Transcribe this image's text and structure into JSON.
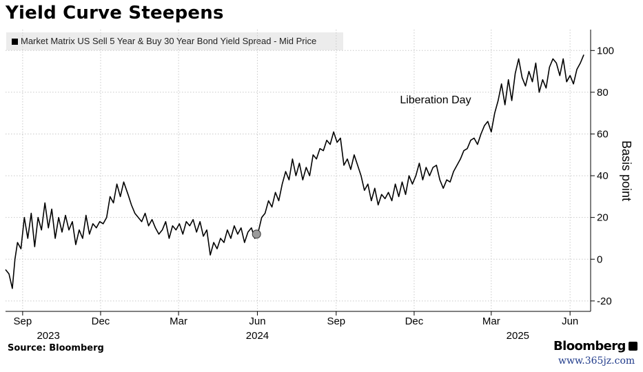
{
  "chart_data": {
    "type": "line",
    "title": "Yield Curve Steepens",
    "series_name": "Market Matrix US Sell 5 Year & Buy 30 Year Bond Yield Spread - Mid Price",
    "ylabel": "Basis point",
    "ylim": [
      -25,
      110
    ],
    "yticks": [
      -20,
      0,
      20,
      40,
      60,
      80,
      100
    ],
    "xlim": [
      "2023-08-12",
      "2025-06-25"
    ],
    "x_month_ticks": [
      {
        "date": "2023-09-01",
        "label": "Sep"
      },
      {
        "date": "2023-12-01",
        "label": "Dec"
      },
      {
        "date": "2024-03-01",
        "label": "Mar"
      },
      {
        "date": "2024-06-01",
        "label": "Jun"
      },
      {
        "date": "2024-09-01",
        "label": "Sep"
      },
      {
        "date": "2024-12-01",
        "label": "Dec"
      },
      {
        "date": "2025-03-01",
        "label": "Mar"
      },
      {
        "date": "2025-06-01",
        "label": "Jun"
      }
    ],
    "x_year_labels": [
      {
        "date": "2023-10-01",
        "label": "2023"
      },
      {
        "date": "2024-06-01",
        "label": "2024"
      },
      {
        "date": "2025-04-01",
        "label": "2025"
      }
    ],
    "grid": true,
    "annotation": {
      "text": "Liberation Day"
    },
    "marker": {
      "date": "2024-05-31",
      "value": 12
    },
    "series": [
      {
        "points": [
          [
            "2023-08-12",
            -5
          ],
          [
            "2023-08-16",
            -7
          ],
          [
            "2023-08-20",
            -14
          ],
          [
            "2023-08-23",
            0
          ],
          [
            "2023-08-26",
            8
          ],
          [
            "2023-08-30",
            5
          ],
          [
            "2023-09-03",
            20
          ],
          [
            "2023-09-07",
            10
          ],
          [
            "2023-09-11",
            22
          ],
          [
            "2023-09-15",
            6
          ],
          [
            "2023-09-19",
            20
          ],
          [
            "2023-09-23",
            14
          ],
          [
            "2023-09-27",
            27
          ],
          [
            "2023-10-01",
            15
          ],
          [
            "2023-10-05",
            24
          ],
          [
            "2023-10-09",
            10
          ],
          [
            "2023-10-13",
            20
          ],
          [
            "2023-10-17",
            13
          ],
          [
            "2023-10-21",
            21
          ],
          [
            "2023-10-25",
            14
          ],
          [
            "2023-10-29",
            18
          ],
          [
            "2023-11-02",
            7
          ],
          [
            "2023-11-06",
            14
          ],
          [
            "2023-11-10",
            10
          ],
          [
            "2023-11-14",
            21
          ],
          [
            "2023-11-18",
            12
          ],
          [
            "2023-11-22",
            17
          ],
          [
            "2023-11-26",
            15
          ],
          [
            "2023-11-30",
            18
          ],
          [
            "2023-12-04",
            17
          ],
          [
            "2023-12-08",
            20
          ],
          [
            "2023-12-12",
            30
          ],
          [
            "2023-12-16",
            27
          ],
          [
            "2023-12-20",
            36
          ],
          [
            "2023-12-24",
            30
          ],
          [
            "2023-12-28",
            37
          ],
          [
            "2024-01-02",
            31
          ],
          [
            "2024-01-06",
            26
          ],
          [
            "2024-01-10",
            22
          ],
          [
            "2024-01-14",
            20
          ],
          [
            "2024-01-18",
            18
          ],
          [
            "2024-01-22",
            22
          ],
          [
            "2024-01-26",
            16
          ],
          [
            "2024-01-30",
            19
          ],
          [
            "2024-02-03",
            15
          ],
          [
            "2024-02-07",
            12
          ],
          [
            "2024-02-11",
            14
          ],
          [
            "2024-02-15",
            18
          ],
          [
            "2024-02-19",
            10
          ],
          [
            "2024-02-23",
            16
          ],
          [
            "2024-02-27",
            14
          ],
          [
            "2024-03-02",
            17
          ],
          [
            "2024-03-06",
            12
          ],
          [
            "2024-03-10",
            18
          ],
          [
            "2024-03-14",
            16
          ],
          [
            "2024-03-18",
            19
          ],
          [
            "2024-03-22",
            13
          ],
          [
            "2024-03-26",
            18
          ],
          [
            "2024-03-30",
            11
          ],
          [
            "2024-04-03",
            14
          ],
          [
            "2024-04-07",
            2
          ],
          [
            "2024-04-11",
            8
          ],
          [
            "2024-04-15",
            5
          ],
          [
            "2024-04-19",
            10
          ],
          [
            "2024-04-23",
            8
          ],
          [
            "2024-04-27",
            14
          ],
          [
            "2024-05-01",
            10
          ],
          [
            "2024-05-05",
            16
          ],
          [
            "2024-05-09",
            12
          ],
          [
            "2024-05-13",
            15
          ],
          [
            "2024-05-17",
            8
          ],
          [
            "2024-05-21",
            13
          ],
          [
            "2024-05-25",
            15
          ],
          [
            "2024-05-29",
            10
          ],
          [
            "2024-06-02",
            13
          ],
          [
            "2024-06-06",
            20
          ],
          [
            "2024-06-10",
            22
          ],
          [
            "2024-06-14",
            28
          ],
          [
            "2024-06-18",
            25
          ],
          [
            "2024-06-22",
            32
          ],
          [
            "2024-06-26",
            28
          ],
          [
            "2024-06-30",
            36
          ],
          [
            "2024-07-04",
            42
          ],
          [
            "2024-07-08",
            38
          ],
          [
            "2024-07-12",
            48
          ],
          [
            "2024-07-16",
            40
          ],
          [
            "2024-07-20",
            46
          ],
          [
            "2024-07-24",
            38
          ],
          [
            "2024-07-28",
            44
          ],
          [
            "2024-08-01",
            40
          ],
          [
            "2024-08-05",
            50
          ],
          [
            "2024-08-09",
            48
          ],
          [
            "2024-08-13",
            53
          ],
          [
            "2024-08-17",
            52
          ],
          [
            "2024-08-21",
            57
          ],
          [
            "2024-08-25",
            55
          ],
          [
            "2024-08-29",
            61
          ],
          [
            "2024-09-02",
            56
          ],
          [
            "2024-09-06",
            58
          ],
          [
            "2024-09-10",
            45
          ],
          [
            "2024-09-14",
            48
          ],
          [
            "2024-09-18",
            43
          ],
          [
            "2024-09-22",
            50
          ],
          [
            "2024-09-26",
            45
          ],
          [
            "2024-09-30",
            40
          ],
          [
            "2024-10-04",
            33
          ],
          [
            "2024-10-08",
            36
          ],
          [
            "2024-10-12",
            28
          ],
          [
            "2024-10-16",
            34
          ],
          [
            "2024-10-20",
            26
          ],
          [
            "2024-10-24",
            31
          ],
          [
            "2024-10-28",
            29
          ],
          [
            "2024-11-01",
            32
          ],
          [
            "2024-11-05",
            28
          ],
          [
            "2024-11-09",
            36
          ],
          [
            "2024-11-13",
            30
          ],
          [
            "2024-11-17",
            37
          ],
          [
            "2024-11-21",
            31
          ],
          [
            "2024-11-25",
            40
          ],
          [
            "2024-11-29",
            36
          ],
          [
            "2024-12-03",
            40
          ],
          [
            "2024-12-07",
            46
          ],
          [
            "2024-12-11",
            38
          ],
          [
            "2024-12-15",
            44
          ],
          [
            "2024-12-19",
            40
          ],
          [
            "2024-12-23",
            44
          ],
          [
            "2024-12-27",
            45
          ],
          [
            "2024-12-31",
            38
          ],
          [
            "2025-01-04",
            34
          ],
          [
            "2025-01-08",
            38
          ],
          [
            "2025-01-12",
            37
          ],
          [
            "2025-01-16",
            42
          ],
          [
            "2025-01-20",
            45
          ],
          [
            "2025-01-24",
            48
          ],
          [
            "2025-01-28",
            52
          ],
          [
            "2025-02-01",
            53
          ],
          [
            "2025-02-05",
            57
          ],
          [
            "2025-02-09",
            58
          ],
          [
            "2025-02-13",
            55
          ],
          [
            "2025-02-17",
            60
          ],
          [
            "2025-02-21",
            64
          ],
          [
            "2025-02-25",
            66
          ],
          [
            "2025-03-01",
            61
          ],
          [
            "2025-03-05",
            70
          ],
          [
            "2025-03-09",
            76
          ],
          [
            "2025-03-13",
            84
          ],
          [
            "2025-03-17",
            74
          ],
          [
            "2025-03-21",
            86
          ],
          [
            "2025-03-25",
            76
          ],
          [
            "2025-03-29",
            89
          ],
          [
            "2025-04-02",
            96
          ],
          [
            "2025-04-06",
            87
          ],
          [
            "2025-04-10",
            83
          ],
          [
            "2025-04-14",
            90
          ],
          [
            "2025-04-18",
            85
          ],
          [
            "2025-04-22",
            94
          ],
          [
            "2025-04-26",
            80
          ],
          [
            "2025-04-30",
            86
          ],
          [
            "2025-05-04",
            82
          ],
          [
            "2025-05-08",
            92
          ],
          [
            "2025-05-12",
            96
          ],
          [
            "2025-05-16",
            94
          ],
          [
            "2025-05-20",
            88
          ],
          [
            "2025-05-24",
            96
          ],
          [
            "2025-05-28",
            85
          ],
          [
            "2025-06-01",
            88
          ],
          [
            "2025-06-05",
            84
          ],
          [
            "2025-06-09",
            91
          ],
          [
            "2025-06-13",
            94
          ],
          [
            "2025-06-17",
            98
          ]
        ]
      }
    ]
  },
  "footer": {
    "source": "Source: Bloomberg",
    "brand": "Bloomberg",
    "brand_icon": "bloomberg-terminal-icon",
    "watermark": "www.365jz.com"
  },
  "colors": {
    "line": "#000000",
    "grid": "#c8c8c8",
    "legend_bg": "#ececec",
    "marker_fill": "#9a9a9a",
    "watermark": "#1f3a8a"
  }
}
